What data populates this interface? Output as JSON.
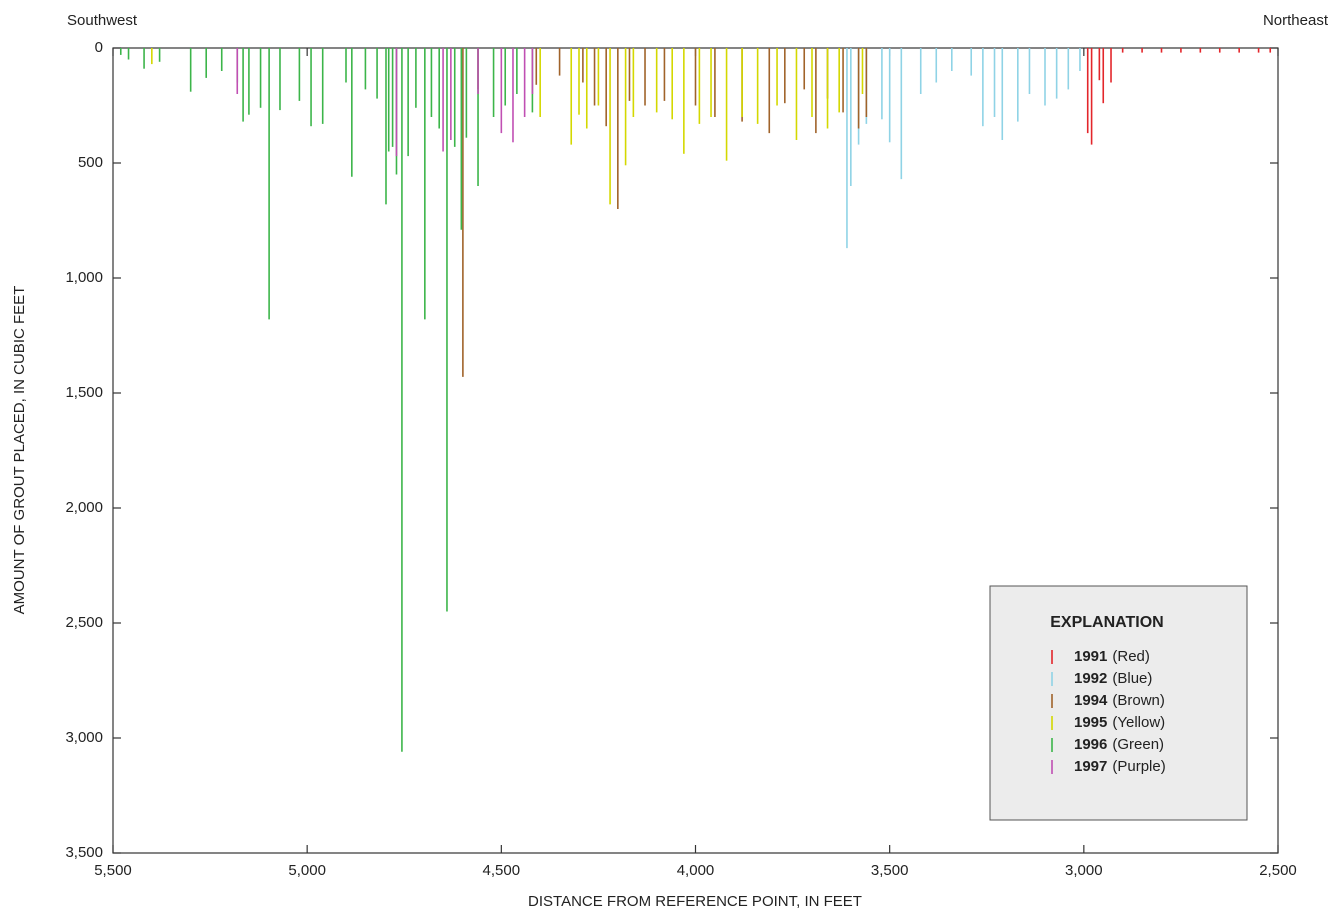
{
  "chart_data": {
    "type": "spike",
    "annotations": {
      "left": "Southwest",
      "right": "Northeast"
    },
    "x_label": "DISTANCE FROM REFERENCE POINT, IN FEET",
    "y_label": "AMOUNT OF GROUT PLACED, IN CUBIC FEET",
    "legend_title": "EXPLANATION",
    "legend_position": "lower right",
    "xlim": [
      5500,
      2500
    ],
    "xticks": [
      {
        "value": 5500,
        "label": "5,500"
      },
      {
        "value": 5000,
        "label": "5,000"
      },
      {
        "value": 4500,
        "label": "4,500"
      },
      {
        "value": 4000,
        "label": "4,000"
      },
      {
        "value": 3500,
        "label": "3,500"
      },
      {
        "value": 3000,
        "label": "3,000"
      },
      {
        "value": 2500,
        "label": "2,500"
      }
    ],
    "ylim": [
      0,
      3500
    ],
    "y_inverted": true,
    "yticks": [
      0,
      500,
      {
        "value": 1000,
        "label": "1,000"
      },
      {
        "value": 1500,
        "label": "1,500"
      },
      {
        "value": 2000,
        "label": "2,000"
      },
      {
        "value": 2500,
        "label": "2,500"
      },
      {
        "value": 3000,
        "label": "3,000"
      },
      {
        "value": 3500,
        "label": "3,500"
      }
    ],
    "series": [
      {
        "name": "1991",
        "legend_label": "(Red)",
        "color": "#e3262b",
        "x": [
          2990,
          2980,
          2960,
          2950,
          2930,
          2900,
          2850,
          2800,
          2750,
          2700,
          2650,
          2600,
          2550,
          2520
        ],
        "values": [
          370,
          420,
          140,
          240,
          150,
          20,
          20,
          20,
          20,
          20,
          20,
          20,
          20,
          20
        ]
      },
      {
        "name": "1992",
        "legend_label": "(Blue)",
        "color": "#8fd3e6",
        "x": [
          3610,
          3600,
          3580,
          3560,
          3520,
          3500,
          3470,
          3420,
          3380,
          3340,
          3290,
          3260,
          3230,
          3210,
          3170,
          3140,
          3100,
          3070,
          3040,
          3010
        ],
        "values": [
          870,
          600,
          420,
          330,
          310,
          410,
          570,
          200,
          150,
          100,
          120,
          340,
          300,
          400,
          320,
          200,
          250,
          220,
          180,
          100
        ]
      },
      {
        "name": "1994",
        "legend_label": "(Brown)",
        "color": "#a0632a",
        "x": [
          4599,
          4560,
          4410,
          4350,
          4290,
          4260,
          4230,
          4200,
          4170,
          4130,
          4080,
          4000,
          3950,
          3880,
          3810,
          3770,
          3720,
          3690,
          3660,
          3620,
          3580,
          3560
        ],
        "values": [
          1430,
          180,
          160,
          120,
          150,
          250,
          340,
          700,
          230,
          250,
          230,
          250,
          300,
          320,
          370,
          240,
          180,
          370,
          220,
          280,
          350,
          300
        ]
      },
      {
        "name": "1995",
        "legend_label": "(Yellow)",
        "color": "#d4d800",
        "x": [
          5400,
          4400,
          4320,
          4300,
          4280,
          4250,
          4220,
          4180,
          4160,
          4100,
          4060,
          4030,
          3990,
          3960,
          3920,
          3880,
          3840,
          3790,
          3740,
          3700,
          3660,
          3630,
          3570
        ],
        "values": [
          70,
          300,
          420,
          290,
          350,
          250,
          680,
          510,
          300,
          280,
          310,
          460,
          330,
          300,
          490,
          300,
          330,
          250,
          400,
          300,
          350,
          280,
          200
        ]
      },
      {
        "name": "1996",
        "legend_label": "(Green)",
        "color": "#3cb54a",
        "x": [
          5480,
          5460,
          5420,
          5380,
          5300,
          5260,
          5220,
          5180,
          5165,
          5150,
          5120,
          5098,
          5070,
          5020,
          4990,
          4960,
          4900,
          4885,
          4850,
          4820,
          4797,
          4790,
          4780,
          4770,
          4756,
          4740,
          4720,
          4697,
          4680,
          4660,
          4640,
          4620,
          4603,
          4590,
          4560,
          4520,
          4490,
          4460,
          4420
        ],
        "values": [
          30,
          50,
          90,
          60,
          190,
          130,
          100,
          150,
          320,
          290,
          260,
          1180,
          270,
          230,
          340,
          330,
          150,
          560,
          180,
          220,
          680,
          450,
          430,
          550,
          3060,
          470,
          260,
          1180,
          300,
          350,
          2450,
          430,
          790,
          390,
          600,
          300,
          250,
          200,
          280
        ]
      },
      {
        "name": "1997",
        "legend_label": "(Purple)",
        "color": "#c04fb3",
        "x": [
          5180,
          4770,
          4650,
          4630,
          4560,
          4500,
          4470,
          4440,
          4420
        ],
        "values": [
          200,
          470,
          450,
          400,
          200,
          370,
          410,
          300,
          200
        ]
      }
    ]
  }
}
